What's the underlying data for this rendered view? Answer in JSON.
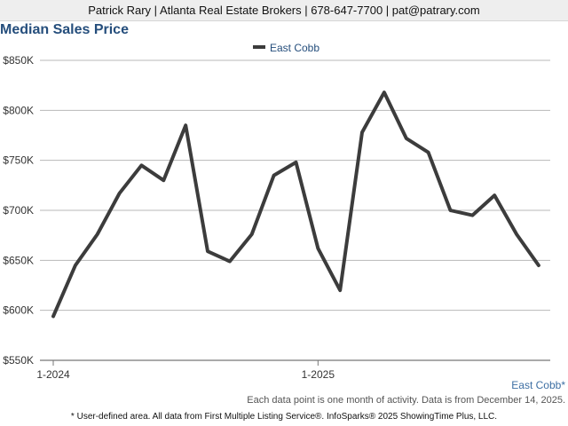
{
  "header": {
    "contact": "Patrick Rary | Atlanta Real Estate Brokers | 678-647-7700 | pat@patrary.com"
  },
  "chart_title": "Median Sales Price",
  "area_label": "East Cobb*",
  "footer": {
    "note": "Each data point is one month of activity. Data is from December 14, 2025.",
    "disclaimer": "* User-defined area. All data from First Multiple Listing Service®. InfoSparks® 2025 ShowingTime Plus, LLC."
  },
  "colors": {
    "line": "#3c3c3c",
    "grid": "#b8b8b8",
    "title": "#254e7c",
    "area_label": "#3d6fa3"
  },
  "chart_data": {
    "type": "line",
    "title": "Median Sales Price",
    "x": [
      "2024-01",
      "2024-02",
      "2024-03",
      "2024-04",
      "2024-05",
      "2024-06",
      "2024-07",
      "2024-08",
      "2024-09",
      "2024-10",
      "2024-11",
      "2024-12",
      "2025-01",
      "2025-02",
      "2025-03",
      "2025-04",
      "2025-05",
      "2025-06",
      "2025-07",
      "2025-08",
      "2025-09",
      "2025-10",
      "2025-11"
    ],
    "x_tick_labels": [
      {
        "index": 0,
        "label": "1-2024"
      },
      {
        "index": 12,
        "label": "1-2025"
      }
    ],
    "y_tick_labels": [
      "$550K",
      "$600K",
      "$650K",
      "$700K",
      "$750K",
      "$800K",
      "$850K"
    ],
    "y_ticks": [
      550000,
      600000,
      650000,
      700000,
      750000,
      800000,
      850000
    ],
    "ylim": [
      550000,
      850000
    ],
    "series": [
      {
        "name": "East Cobb",
        "values": [
          594000,
          645000,
          676000,
          717000,
          745000,
          730000,
          785000,
          659000,
          649000,
          676000,
          735000,
          748000,
          662000,
          620000,
          778000,
          818000,
          772000,
          758000,
          700000,
          695000,
          715000,
          676000,
          645000
        ]
      }
    ],
    "legend_position": "top-center",
    "grid": true
  }
}
